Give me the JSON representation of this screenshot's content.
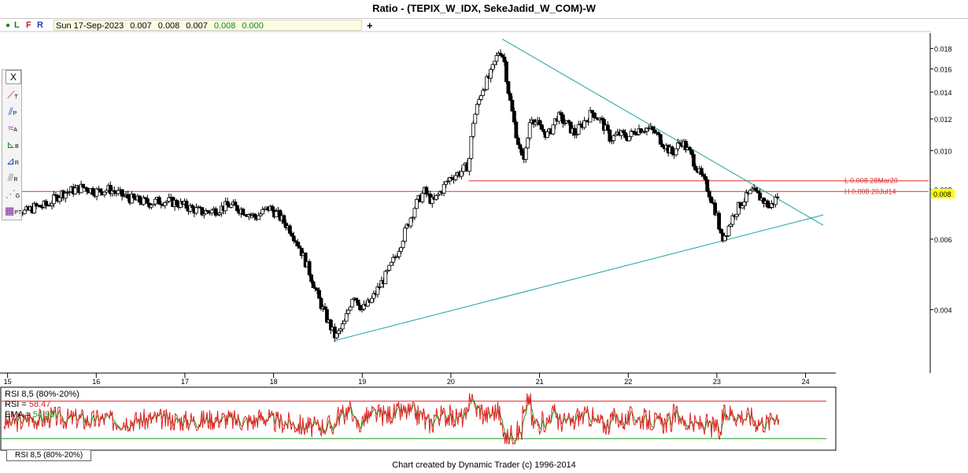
{
  "window": {
    "title": "Ratio - (TEPIX_W_IDX, SekeJadid_W_COM)-W"
  },
  "info_bar": {
    "flags": [
      "L",
      "F",
      "R"
    ],
    "date": "Sun 17-Sep-2023",
    "open": "0.007",
    "high": "0.008",
    "low": "0.007",
    "close": "0.008",
    "volume": "0.000",
    "plus": "+"
  },
  "toolbox": {
    "close_label": "X",
    "tools": [
      {
        "icon": "trend-line-icon",
        "letter": "T"
      },
      {
        "icon": "parallel-lines-icon",
        "letter": "P"
      },
      {
        "icon": "alternate-price-projection-icon",
        "letter": "A"
      },
      {
        "icon": "fibonacci-extension-icon",
        "letter": "B"
      },
      {
        "icon": "retracement-icon",
        "letter": "R"
      },
      {
        "icon": "ratio-retracement-icon",
        "letter": "R"
      },
      {
        "icon": "gann-fan-icon",
        "letter": "G"
      },
      {
        "icon": "time-projection-icon",
        "letter": "PT"
      }
    ]
  },
  "chart_data": {
    "type": "candlestick",
    "y_scale": "log",
    "ylim": [
      0.0028,
      0.0195
    ],
    "price_ticks": [
      0.004,
      0.006,
      0.008,
      0.01,
      0.012,
      0.014,
      0.016,
      0.018
    ],
    "price_tick_labels": [
      "0.004",
      "0.006",
      "0.008",
      "0.010",
      "0.012",
      "0.014",
      "0.016",
      "0.018"
    ],
    "year_ticks": [
      {
        "label": "15",
        "x": 2015.0
      },
      {
        "label": "16",
        "x": 2016.0
      },
      {
        "label": "17",
        "x": 2017.0
      },
      {
        "label": "18",
        "x": 2018.0
      },
      {
        "label": "19",
        "x": 2019.0
      },
      {
        "label": "20",
        "x": 2020.0
      },
      {
        "label": "21",
        "x": 2021.0
      },
      {
        "label": "22",
        "x": 2022.0
      },
      {
        "label": "23",
        "x": 2023.0
      },
      {
        "label": "24",
        "x": 2024.0
      }
    ],
    "last_price_label": "0.008",
    "horizontal_levels": [
      {
        "label": "L 0.008 28Mar20",
        "value": 0.0084,
        "from": 2020.2
      },
      {
        "label": "H 0.008 20Jul14",
        "value": 0.0079,
        "from": 2014.95
      }
    ],
    "trendlines": [
      {
        "from": [
          2020.58,
          0.019
        ],
        "to": [
          2024.2,
          0.0065
        ]
      },
      {
        "from": [
          2018.7,
          0.00335
        ],
        "to": [
          2024.2,
          0.0069
        ]
      }
    ],
    "price_path": [
      [
        2014.95,
        0.0079
      ],
      [
        2015.05,
        0.0074
      ],
      [
        2015.2,
        0.007
      ],
      [
        2015.3,
        0.0072
      ],
      [
        2015.45,
        0.0073
      ],
      [
        2015.6,
        0.0078
      ],
      [
        2015.7,
        0.0079
      ],
      [
        2015.85,
        0.0081
      ],
      [
        2016.0,
        0.0079
      ],
      [
        2016.15,
        0.008
      ],
      [
        2016.3,
        0.0077
      ],
      [
        2016.45,
        0.0075
      ],
      [
        2016.6,
        0.0074
      ],
      [
        2016.75,
        0.0075
      ],
      [
        2016.9,
        0.0074
      ],
      [
        2017.05,
        0.0072
      ],
      [
        2017.2,
        0.007
      ],
      [
        2017.35,
        0.0071
      ],
      [
        2017.5,
        0.0073
      ],
      [
        2017.65,
        0.0071
      ],
      [
        2017.8,
        0.0068
      ],
      [
        2017.95,
        0.0072
      ],
      [
        2018.05,
        0.0069
      ],
      [
        2018.2,
        0.0063
      ],
      [
        2018.3,
        0.0057
      ],
      [
        2018.4,
        0.005
      ],
      [
        2018.5,
        0.0043
      ],
      [
        2018.6,
        0.0038
      ],
      [
        2018.7,
        0.0034
      ],
      [
        2018.8,
        0.0037
      ],
      [
        2018.9,
        0.0044
      ],
      [
        2019.0,
        0.004
      ],
      [
        2019.1,
        0.0042
      ],
      [
        2019.2,
        0.0046
      ],
      [
        2019.3,
        0.005
      ],
      [
        2019.4,
        0.0056
      ],
      [
        2019.5,
        0.0064
      ],
      [
        2019.6,
        0.0073
      ],
      [
        2019.7,
        0.0079
      ],
      [
        2019.8,
        0.0074
      ],
      [
        2019.9,
        0.008
      ],
      [
        2020.0,
        0.0086
      ],
      [
        2020.1,
        0.0088
      ],
      [
        2020.2,
        0.0092
      ],
      [
        2020.25,
        0.0118
      ],
      [
        2020.35,
        0.0142
      ],
      [
        2020.45,
        0.0155
      ],
      [
        2020.55,
        0.018
      ],
      [
        2020.6,
        0.0169
      ],
      [
        2020.65,
        0.014
      ],
      [
        2020.72,
        0.0115
      ],
      [
        2020.8,
        0.0095
      ],
      [
        2020.85,
        0.01
      ],
      [
        2020.9,
        0.0123
      ],
      [
        2021.0,
        0.0114
      ],
      [
        2021.1,
        0.0109
      ],
      [
        2021.2,
        0.0122
      ],
      [
        2021.3,
        0.0117
      ],
      [
        2021.4,
        0.011
      ],
      [
        2021.5,
        0.0118
      ],
      [
        2021.6,
        0.0125
      ],
      [
        2021.7,
        0.0118
      ],
      [
        2021.8,
        0.0107
      ],
      [
        2021.9,
        0.011
      ],
      [
        2022.0,
        0.0108
      ],
      [
        2022.1,
        0.0113
      ],
      [
        2022.2,
        0.0114
      ],
      [
        2022.3,
        0.0111
      ],
      [
        2022.4,
        0.0104
      ],
      [
        2022.5,
        0.0098
      ],
      [
        2022.6,
        0.0106
      ],
      [
        2022.7,
        0.0098
      ],
      [
        2022.8,
        0.0088
      ],
      [
        2022.9,
        0.008
      ],
      [
        2023.0,
        0.0069
      ],
      [
        2023.05,
        0.006
      ],
      [
        2023.1,
        0.0062
      ],
      [
        2023.2,
        0.007
      ],
      [
        2023.3,
        0.0075
      ],
      [
        2023.4,
        0.0079
      ],
      [
        2023.5,
        0.0076
      ],
      [
        2023.6,
        0.0072
      ],
      [
        2023.7,
        0.0078
      ]
    ],
    "rsi": {
      "title": "RSI 8,5 (80%-20%)",
      "rsi_label": "RSI = ",
      "rsi_value": "58.47",
      "ema_label": "EMA = ",
      "ema_value": "54.98",
      "upper_level": 80,
      "lower_level": 20,
      "ylim": [
        0,
        100
      ],
      "tab_label": "RSI 8,5 (80%-20%)"
    },
    "colors": {
      "up_candle": "#ffffff",
      "down_candle": "#000000",
      "trendline": "#1aa0a0",
      "level_line": "#e03030",
      "level_text": "#e03030",
      "rsi_line": "#e02020",
      "ema_line": "#1a9a1a",
      "upper_band": "#e02020",
      "lower_band": "#1a9a1a",
      "last_price_bg": "#ffff00"
    }
  },
  "footer": {
    "text": "Chart created by Dynamic Trader  (c)  1996-2014"
  }
}
